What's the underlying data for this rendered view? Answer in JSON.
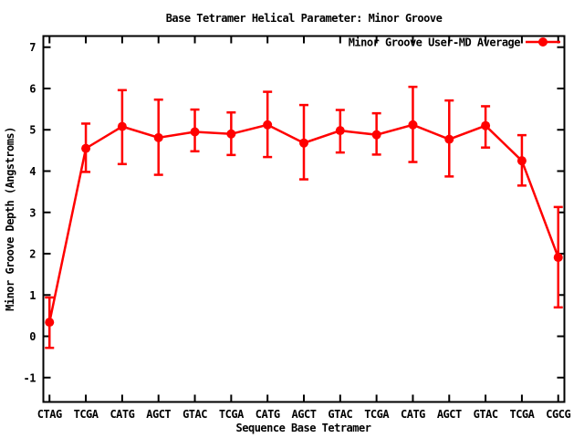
{
  "chart_data": {
    "type": "line",
    "title": "Base Tetramer Helical Parameter: Minor Groove",
    "xlabel": "Sequence Base Tetramer",
    "ylabel": "Minor Groove Depth (Angstroms)",
    "legend_position": "top-right-inside",
    "grid": false,
    "background": "#ffffff",
    "axis_color": "#000000",
    "categories": [
      "CTAG",
      "TCGA",
      "CATG",
      "AGCT",
      "GTAC",
      "TCGA",
      "CATG",
      "AGCT",
      "GTAC",
      "TCGA",
      "CATG",
      "AGCT",
      "GTAC",
      "TCGA",
      "CGCG"
    ],
    "yticks": [
      -1,
      0,
      1,
      2,
      3,
      4,
      5,
      6,
      7
    ],
    "ylim": [
      -1.59,
      7.27
    ],
    "series": [
      {
        "name": "Minor Groove User-MD Average",
        "color": "#ff0000",
        "marker": "filled-circle",
        "values": [
          0.34,
          4.55,
          5.08,
          4.81,
          4.95,
          4.9,
          5.12,
          4.68,
          4.98,
          4.88,
          5.12,
          4.77,
          5.1,
          4.25,
          1.91
        ],
        "error_low": [
          -0.28,
          3.98,
          4.17,
          3.91,
          4.48,
          4.39,
          4.34,
          3.8,
          4.45,
          4.4,
          4.22,
          3.87,
          4.57,
          3.65,
          0.7
        ],
        "error_high": [
          0.94,
          5.15,
          5.96,
          5.73,
          5.49,
          5.42,
          5.92,
          5.6,
          5.48,
          5.4,
          6.04,
          5.71,
          5.57,
          4.87,
          3.13
        ]
      }
    ]
  }
}
